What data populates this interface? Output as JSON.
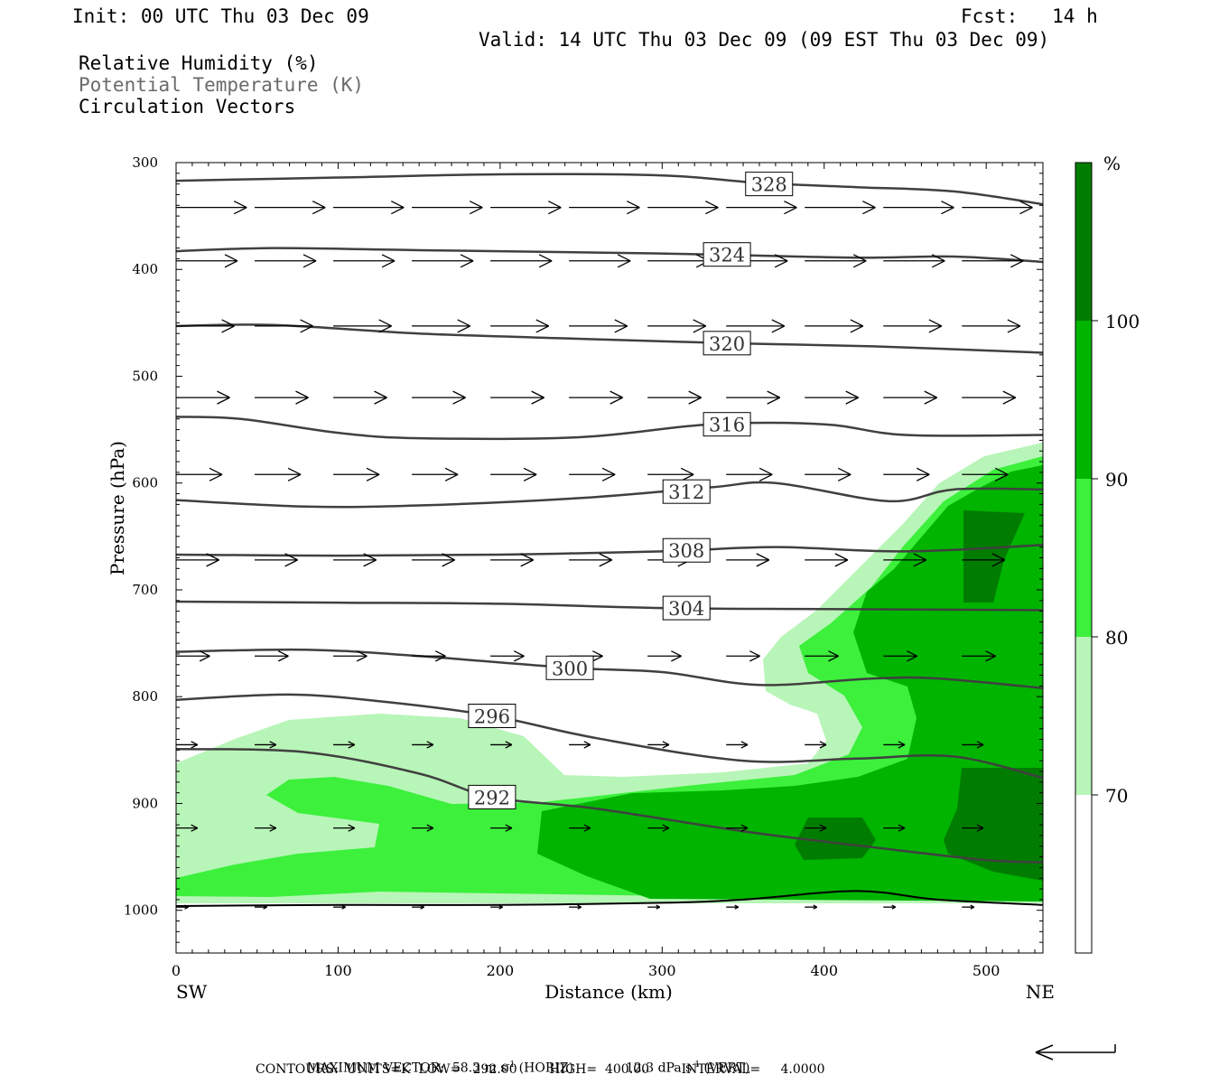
{
  "header": {
    "init": "Init: 00 UTC Thu 03 Dec 09",
    "fcst": "Fcst:   14 h",
    "valid": "Valid: 14 UTC Thu 03 Dec 09 (09 EST Thu 03 Dec 09)",
    "field1": "Relative Humidity (%)",
    "field2": "Potential Temperature (K)",
    "field3": "Circulation Vectors"
  },
  "colors": {
    "rh_70_80": "#b8f5b8",
    "rh_80_90": "#3cf03c",
    "rh_90_100": "#00b400",
    "rh_100": "#007d00",
    "contour": "#404040"
  },
  "colorbar": {
    "unit": "%",
    "labels": [
      "100",
      "90",
      "80",
      "70"
    ]
  },
  "footer": {
    "vector_label": "MAXIMUM VECTOR:",
    "horiz_value": "58.3 m s",
    "horiz_unit": "(HORIZ)",
    "vert_value": "12.3 dPa s",
    "vert_unit": "(VERT)",
    "exponent": "-1",
    "contours": "CONTOURS:  UNITS=K  LOW=   292.00        HIGH=  400.00        INTERVAL=     4.0000"
  },
  "chart_data": {
    "type": "cross-section contour",
    "xlabel": "Distance (km)",
    "ylabel": "Pressure (hPa)",
    "xlim": [
      0,
      535
    ],
    "ylim": [
      1040,
      300
    ],
    "x_ticks": [
      0,
      100,
      200,
      300,
      400,
      500
    ],
    "y_ticks": [
      300,
      400,
      500,
      600,
      700,
      800,
      900,
      1000
    ],
    "x_end_labels": {
      "left": "SW",
      "right": "NE"
    },
    "theta_contours": [
      {
        "label": "328",
        "label_at": [
          366,
          320
        ],
        "points": [
          [
            0,
            317
          ],
          [
            100,
            314
          ],
          [
            200,
            311
          ],
          [
            300,
            312
          ],
          [
            360,
            319
          ],
          [
            420,
            323
          ],
          [
            480,
            327
          ],
          [
            535,
            339
          ]
        ]
      },
      {
        "label": "324",
        "label_at": [
          340,
          386
        ],
        "points": [
          [
            0,
            383
          ],
          [
            60,
            380
          ],
          [
            150,
            382
          ],
          [
            250,
            384
          ],
          [
            330,
            386
          ],
          [
            420,
            389
          ],
          [
            480,
            388
          ],
          [
            535,
            393
          ]
        ]
      },
      {
        "label": "320",
        "label_at": [
          340,
          469
        ],
        "points": [
          [
            0,
            453
          ],
          [
            60,
            452
          ],
          [
            150,
            460
          ],
          [
            250,
            465
          ],
          [
            340,
            469
          ],
          [
            430,
            472
          ],
          [
            535,
            478
          ]
        ]
      },
      {
        "label": "316",
        "label_at": [
          340,
          545
        ],
        "points": [
          [
            0,
            538
          ],
          [
            40,
            540
          ],
          [
            100,
            553
          ],
          [
            150,
            558
          ],
          [
            250,
            557
          ],
          [
            330,
            545
          ],
          [
            400,
            545
          ],
          [
            450,
            555
          ],
          [
            535,
            555
          ]
        ]
      },
      {
        "label": "312",
        "label_at": [
          315,
          608
        ],
        "points": [
          [
            0,
            616
          ],
          [
            80,
            622
          ],
          [
            150,
            621
          ],
          [
            250,
            614
          ],
          [
            330,
            604
          ],
          [
            370,
            600
          ],
          [
            440,
            617
          ],
          [
            480,
            606
          ],
          [
            535,
            606
          ]
        ]
      },
      {
        "label": "308",
        "label_at": [
          315,
          663
        ],
        "points": [
          [
            0,
            667
          ],
          [
            100,
            668
          ],
          [
            200,
            667
          ],
          [
            300,
            664
          ],
          [
            370,
            660
          ],
          [
            450,
            664
          ],
          [
            535,
            658
          ]
        ]
      },
      {
        "label": "304",
        "label_at": [
          315,
          717
        ],
        "points": [
          [
            0,
            711
          ],
          [
            100,
            712
          ],
          [
            200,
            713
          ],
          [
            300,
            717
          ],
          [
            400,
            718
          ],
          [
            535,
            719
          ]
        ]
      },
      {
        "label": "300",
        "label_at": [
          243,
          773
        ],
        "points": [
          [
            0,
            758
          ],
          [
            80,
            756
          ],
          [
            150,
            762
          ],
          [
            243,
            773
          ],
          [
            300,
            777
          ],
          [
            360,
            789
          ],
          [
            430,
            783
          ],
          [
            470,
            783
          ],
          [
            535,
            792
          ]
        ]
      },
      {
        "label": "296",
        "label_at": [
          195,
          818
        ],
        "points": [
          [
            0,
            803
          ],
          [
            70,
            798
          ],
          [
            130,
            805
          ],
          [
            195,
            818
          ],
          [
            260,
            839
          ],
          [
            350,
            860
          ],
          [
            420,
            858
          ],
          [
            480,
            856
          ],
          [
            535,
            876
          ]
        ]
      },
      {
        "label": "292",
        "label_at": [
          195,
          894
        ],
        "points": [
          [
            0,
            849
          ],
          [
            80,
            852
          ],
          [
            150,
            872
          ],
          [
            195,
            894
          ],
          [
            260,
            905
          ],
          [
            350,
            926
          ],
          [
            430,
            941
          ],
          [
            500,
            953
          ],
          [
            535,
            955
          ]
        ]
      }
    ],
    "surface": [
      [
        0,
        996
      ],
      [
        100,
        995
      ],
      [
        200,
        995
      ],
      [
        300,
        993
      ],
      [
        350,
        990
      ],
      [
        420,
        982
      ],
      [
        470,
        990
      ],
      [
        535,
        995
      ]
    ],
    "vector_rows": [
      {
        "p": 342,
        "u": 46,
        "w": 0
      },
      {
        "p": 392,
        "u": 40,
        "w": 0
      },
      {
        "p": 453,
        "u": 38,
        "w": 0
      },
      {
        "p": 520,
        "u": 35,
        "w": 0
      },
      {
        "p": 592,
        "u": 30,
        "w": 0
      },
      {
        "p": 672,
        "u": 28,
        "w": 0
      },
      {
        "p": 762,
        "u": 22,
        "w": 0
      },
      {
        "p": 845,
        "u": 14,
        "w": 0
      },
      {
        "p": 923,
        "u": 14,
        "w": 0
      },
      {
        "p": 997,
        "u": 8,
        "w": 0
      }
    ],
    "colorbar_levels": [
      70,
      80,
      90,
      100
    ]
  }
}
